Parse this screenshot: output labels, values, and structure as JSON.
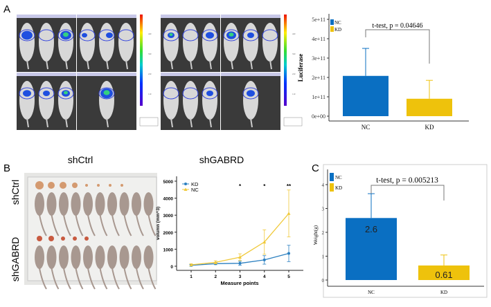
{
  "panels": {
    "a": {
      "label": "A",
      "group_labels": [
        "shCtrl",
        "shGABRD"
      ],
      "colorbar_ticks": [
        "4.0",
        "3.0",
        "2.0",
        "1.0"
      ]
    },
    "b": {
      "label": "B",
      "photo_labels": [
        "shCtrl",
        "shGABRD"
      ]
    },
    "c": {
      "label": "C"
    }
  },
  "colors": {
    "nc_blue": "#0a6fc2",
    "kd_yellow": "#eec20c",
    "line_kd": "#2a7fc0",
    "line_nc": "#f0c93a"
  },
  "chart_data": [
    {
      "id": "luciferase",
      "type": "bar",
      "categories": [
        "NC",
        "KD"
      ],
      "values": [
        208000000000.0,
        90000000000.0
      ],
      "error_upper": [
        350000000000.0,
        185000000000.0
      ],
      "ylabel": "Luciferase",
      "ylim": [
        0,
        500000000000.0
      ],
      "yticks": [
        0,
        100000000000.0,
        200000000000.0,
        300000000000.0,
        400000000000.0,
        500000000000.0
      ],
      "ytick_labels": [
        "0e+00",
        "1e+11",
        "2e+11",
        "3e+11",
        "4e+11",
        "5e+11"
      ],
      "legend": [
        "NC",
        "KD"
      ],
      "legend_position": "top-left",
      "annotation": "t-test, p = 0.04646"
    },
    {
      "id": "volume",
      "type": "line",
      "x": [
        1,
        2,
        3,
        4,
        5
      ],
      "xlabel": "Measure points",
      "ylabel": "volumn (mm^3)",
      "ylim": [
        0,
        5000
      ],
      "yticks": [
        0,
        1000,
        2000,
        3000,
        4000,
        5000
      ],
      "series": [
        {
          "name": "KD",
          "values": [
            50,
            150,
            170,
            370,
            750
          ],
          "errors": [
            50,
            60,
            120,
            250,
            480
          ]
        },
        {
          "name": "NC",
          "values": [
            80,
            230,
            530,
            1420,
            3100
          ],
          "errors": [
            60,
            90,
            200,
            720,
            1380
          ]
        }
      ],
      "significance": [
        {
          "x": 3,
          "label": "*"
        },
        {
          "x": 4,
          "label": "*"
        },
        {
          "x": 5,
          "label": "**"
        }
      ],
      "legend_position": "top-left"
    },
    {
      "id": "weight",
      "type": "bar",
      "categories": [
        "NC",
        "KD"
      ],
      "values": [
        2.6,
        0.61
      ],
      "data_labels": [
        "2.6",
        "0.61"
      ],
      "error_upper": [
        3.62,
        1.05
      ],
      "ylabel": "Weight(g)",
      "ylim": [
        0,
        4.5
      ],
      "yticks": [
        0,
        1,
        2,
        3,
        4
      ],
      "legend": [
        "NC",
        "KD"
      ],
      "legend_position": "top-left",
      "annotation": "t-test, p = 0.005213"
    }
  ]
}
